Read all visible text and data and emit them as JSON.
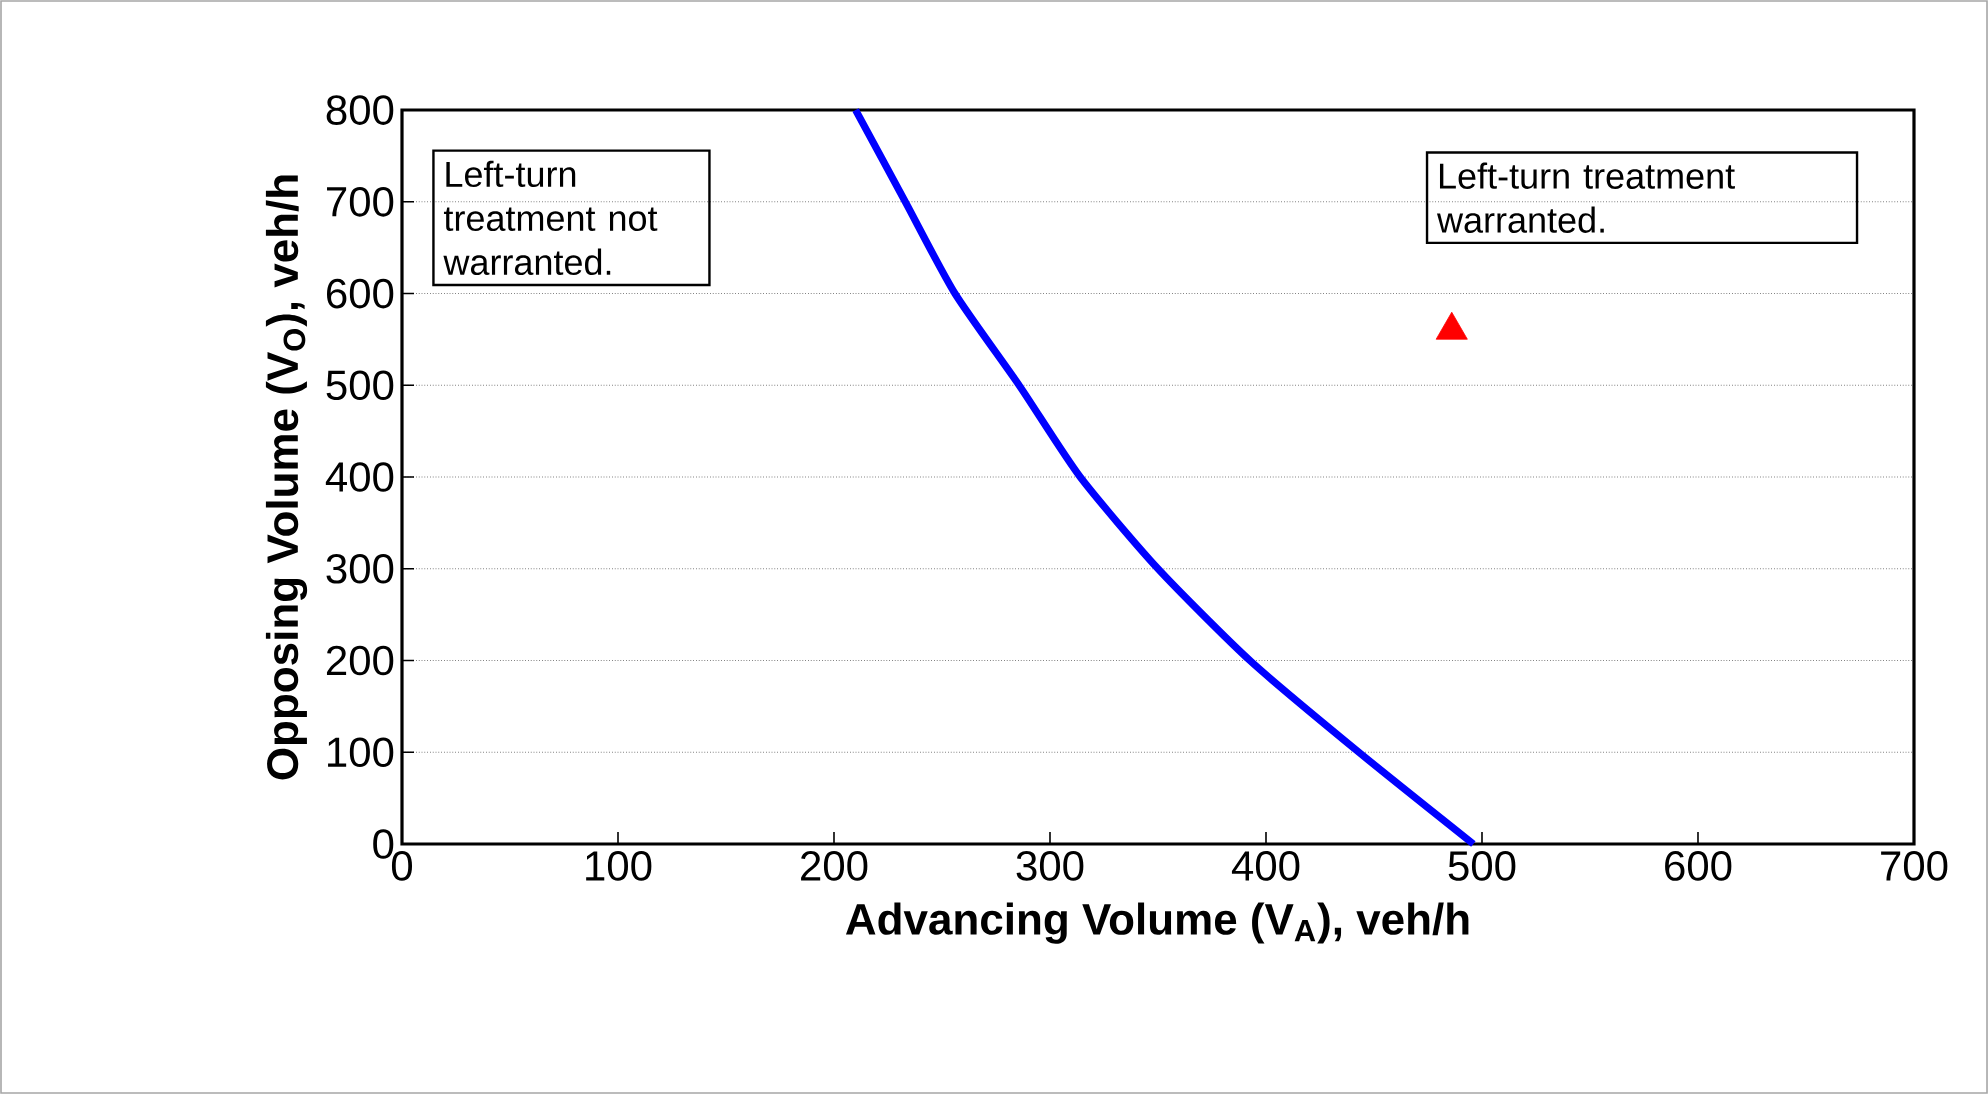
{
  "chart_data": {
    "type": "line",
    "xlabel": "Advancing Volume (V$_{A}$), veh/h",
    "ylabel": "Opposing Volume (V$_{O}$), veh/h",
    "xlim": [
      0,
      700
    ],
    "xticks": [
      0,
      100,
      200,
      300,
      400,
      500,
      600,
      700
    ],
    "ylim": [
      0,
      800
    ],
    "yticks": [
      0,
      100,
      200,
      300,
      400,
      500,
      600,
      700,
      800
    ],
    "grid": "y",
    "annotations": [
      "Left-turn treatment not warranted.",
      "Left-turn treatment warranted."
    ],
    "series": [
      {
        "color": "#0000ff",
        "marker": "none",
        "line_style": "solid",
        "x": [
          210,
          233,
          256,
          286,
          314,
          350,
          393,
          443,
          496
        ],
        "values": [
          800,
          700,
          600,
          499,
          400,
          300,
          199,
          100,
          0
        ]
      },
      {
        "type": "scatter",
        "color": "#ff0000",
        "marker": "triangle",
        "x": [
          486
        ],
        "values": [
          560
        ]
      }
    ]
  }
}
